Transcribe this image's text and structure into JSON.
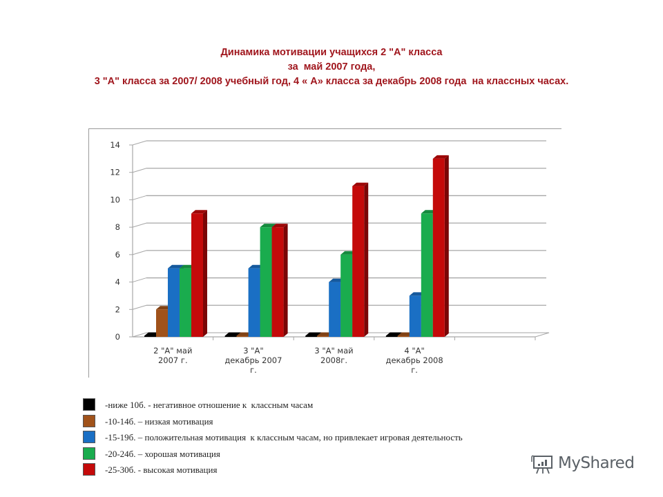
{
  "title": {
    "line1": "Динамика мотивации учащихся 2 \"А\" класса",
    "line2": "за  май 2007 года,",
    "line3": "3 \"А\" класса за 2007/ 2008 учебный год, 4 « А» класса за декабрь 2008 года  на классных часах."
  },
  "colors": {
    "title": "#a0161d",
    "series_black": "#000000",
    "series_brown": "#a0521a",
    "series_blue": "#1a6fc4",
    "series_green": "#1aac4e",
    "series_red": "#c40a0a",
    "grid": "#a6a6a6"
  },
  "chart_data": {
    "type": "bar",
    "title": "Динамика мотивации учащихся 2 \"А\" класса за май 2007 года, 3 \"А\" класса за 2007/ 2008 учебный год, 4 « А» класса за декабрь 2008 года на классных часах.",
    "categories": [
      "2 \"А\" май 2007 г.",
      "3 \"А\" декабрь 2007 г.",
      "3 \"А\" май 2008г.",
      "4 \"А\" декабрь 2008 г."
    ],
    "category_label_lines": [
      [
        "2 \"А\" май",
        "2007 г."
      ],
      [
        "3 \"А\"",
        "декабрь 2007",
        "г."
      ],
      [
        "3 \"А\" май",
        "2008г."
      ],
      [
        "4 \"А\"",
        "декабрь 2008",
        "г."
      ]
    ],
    "series": [
      {
        "name": "-ниже 10б. - негативное отношение к  классным часам",
        "color": "#000000",
        "values": [
          0,
          0,
          0,
          0
        ]
      },
      {
        "name": "-10-14б. – низкая мотивация",
        "color": "#a0521a",
        "values": [
          2,
          0,
          0,
          0
        ]
      },
      {
        "name": "-15-19б. – положительная мотивация  к классным часам, но привлекает игровая деятельность",
        "color": "#1a6fc4",
        "values": [
          5,
          5,
          4,
          3
        ]
      },
      {
        "name": "-20-24б. – хорошая мотивация",
        "color": "#1aac4e",
        "values": [
          5,
          8,
          6,
          9
        ]
      },
      {
        "name": "-25-30б. - высокая мотивация",
        "color": "#c40a0a",
        "values": [
          9,
          8,
          11,
          13
        ]
      }
    ],
    "y_ticks": [
      "0",
      "2",
      "4",
      "6",
      "8",
      "10",
      "12",
      "14"
    ],
    "ylim": [
      0,
      14
    ],
    "xlabel": "",
    "ylabel": "",
    "grid": true,
    "style": "3d-clustered-column",
    "legend_position": "below"
  },
  "legend": [
    {
      "label": "-ниже 10б. - негативное отношение к  классным часам",
      "color": "#000000"
    },
    {
      "label": "-10-14б. – низкая мотивация",
      "color": "#a0521a"
    },
    {
      "label": "-15-19б. – положительная мотивация  к классным часам, но привлекает игровая деятельность",
      "color": "#1a6fc4"
    },
    {
      "label": "-20-24б. – хорошая мотивация",
      "color": "#1aac4e"
    },
    {
      "label": "-25-30б. - высокая мотивация",
      "color": "#c40a0a"
    }
  ],
  "watermark": {
    "text": "MyShared",
    "icon": "presentation-chart-icon"
  }
}
